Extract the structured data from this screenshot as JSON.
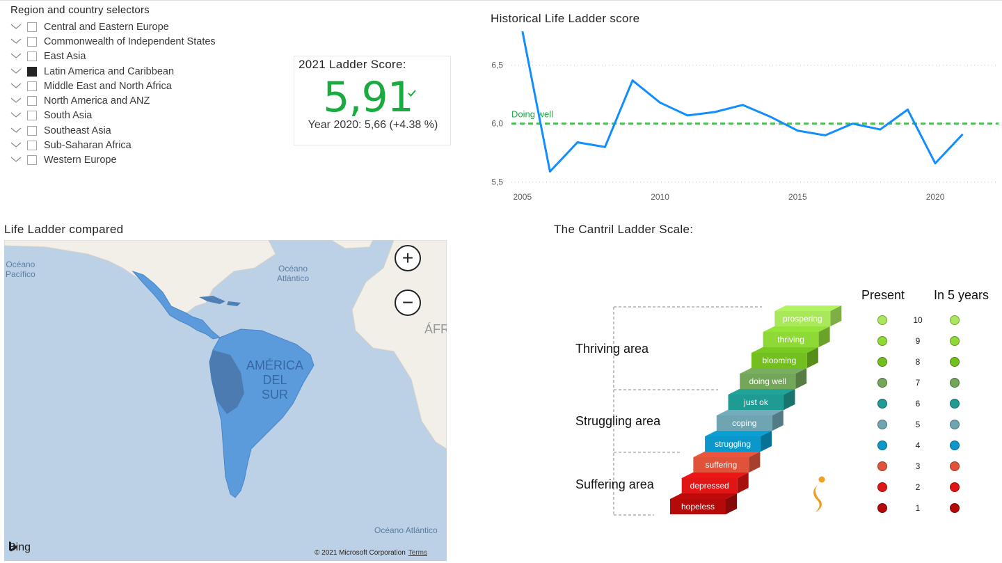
{
  "slicer": {
    "title": "Region and country selectors",
    "items": [
      {
        "label": "Central and Eastern Europe",
        "checked": false
      },
      {
        "label": "Commonwealth of Independent States",
        "checked": false
      },
      {
        "label": "East Asia",
        "checked": false
      },
      {
        "label": "Latin America and Caribbean",
        "checked": true
      },
      {
        "label": "Middle East and North Africa",
        "checked": false
      },
      {
        "label": "North America and ANZ",
        "checked": false
      },
      {
        "label": "South Asia",
        "checked": false
      },
      {
        "label": "Southeast Asia",
        "checked": false
      },
      {
        "label": "Sub-Saharan Africa",
        "checked": false
      },
      {
        "label": "Western Europe",
        "checked": false
      }
    ]
  },
  "kpi": {
    "title": "2021 Ladder Score:",
    "value": "5,91",
    "subtitle": "Year 2020: 5,66 (+4.38 %)",
    "value_color": "#1aab40",
    "icon": "check-icon"
  },
  "chart_title": "Historical Life Ladder score",
  "chart_data": {
    "type": "line",
    "x": [
      2005,
      2006,
      2007,
      2008,
      2009,
      2010,
      2011,
      2012,
      2013,
      2014,
      2015,
      2016,
      2017,
      2018,
      2019,
      2020,
      2021
    ],
    "series": [
      {
        "values": [
          6.79,
          5.59,
          5.84,
          5.8,
          6.37,
          6.18,
          6.07,
          6.1,
          6.16,
          6.06,
          5.94,
          5.9,
          6.0,
          5.95,
          6.12,
          5.66,
          5.91
        ],
        "color": "#118dff"
      }
    ],
    "reference_line": {
      "label": "Doing well",
      "value": 6.0,
      "color": "#48c14b"
    },
    "x_ticks": [
      2005,
      2010,
      2015,
      2020
    ],
    "y_ticks": [
      "5,5",
      "6,0",
      "6,5"
    ],
    "y_tick_values": [
      5.5,
      6.0,
      6.5
    ],
    "ylim": [
      5.45,
      6.82
    ],
    "xlim": [
      2004.6,
      2022.3
    ],
    "grid": true
  },
  "map": {
    "title": "Life Ladder compared",
    "labels": {
      "pacific": "Océano\nPacífico",
      "atlantic_north": "Océano\nAtlántico",
      "atlantic_south": "Océano Atlántico",
      "africa": "ÁFR",
      "south_america": "AMÉRICA\nDEL\nSUR"
    },
    "zoom_in": "+",
    "zoom_out": "−",
    "bing": "Bing",
    "copyright": "© 2021 Microsoft Corporation",
    "terms": "Terms",
    "highlight_color": "#5b9bdc"
  },
  "cantril": {
    "title": "The Cantril Ladder Scale:",
    "areas": [
      "Thriving area",
      "Struggling area",
      "Suffering area"
    ],
    "col_present": "Present",
    "col_future": "In 5 years",
    "steps": [
      {
        "label": "prospering",
        "n": "10",
        "color": "#a8e85a"
      },
      {
        "label": "thriving",
        "n": "9",
        "color": "#8ed935"
      },
      {
        "label": "blooming",
        "n": "8",
        "color": "#72bf1f"
      },
      {
        "label": "doing well",
        "n": "7",
        "color": "#74a65a"
      },
      {
        "label": "just ok",
        "n": "6",
        "color": "#1e9c93"
      },
      {
        "label": "coping",
        "n": "5",
        "color": "#6fa4b2"
      },
      {
        "label": "struggling",
        "n": "4",
        "color": "#0b97c9"
      },
      {
        "label": "suffering",
        "n": "3",
        "color": "#e0533a"
      },
      {
        "label": "depressed",
        "n": "2",
        "color": "#e01515"
      },
      {
        "label": "hopeless",
        "n": "1",
        "color": "#b40a0a"
      }
    ]
  }
}
